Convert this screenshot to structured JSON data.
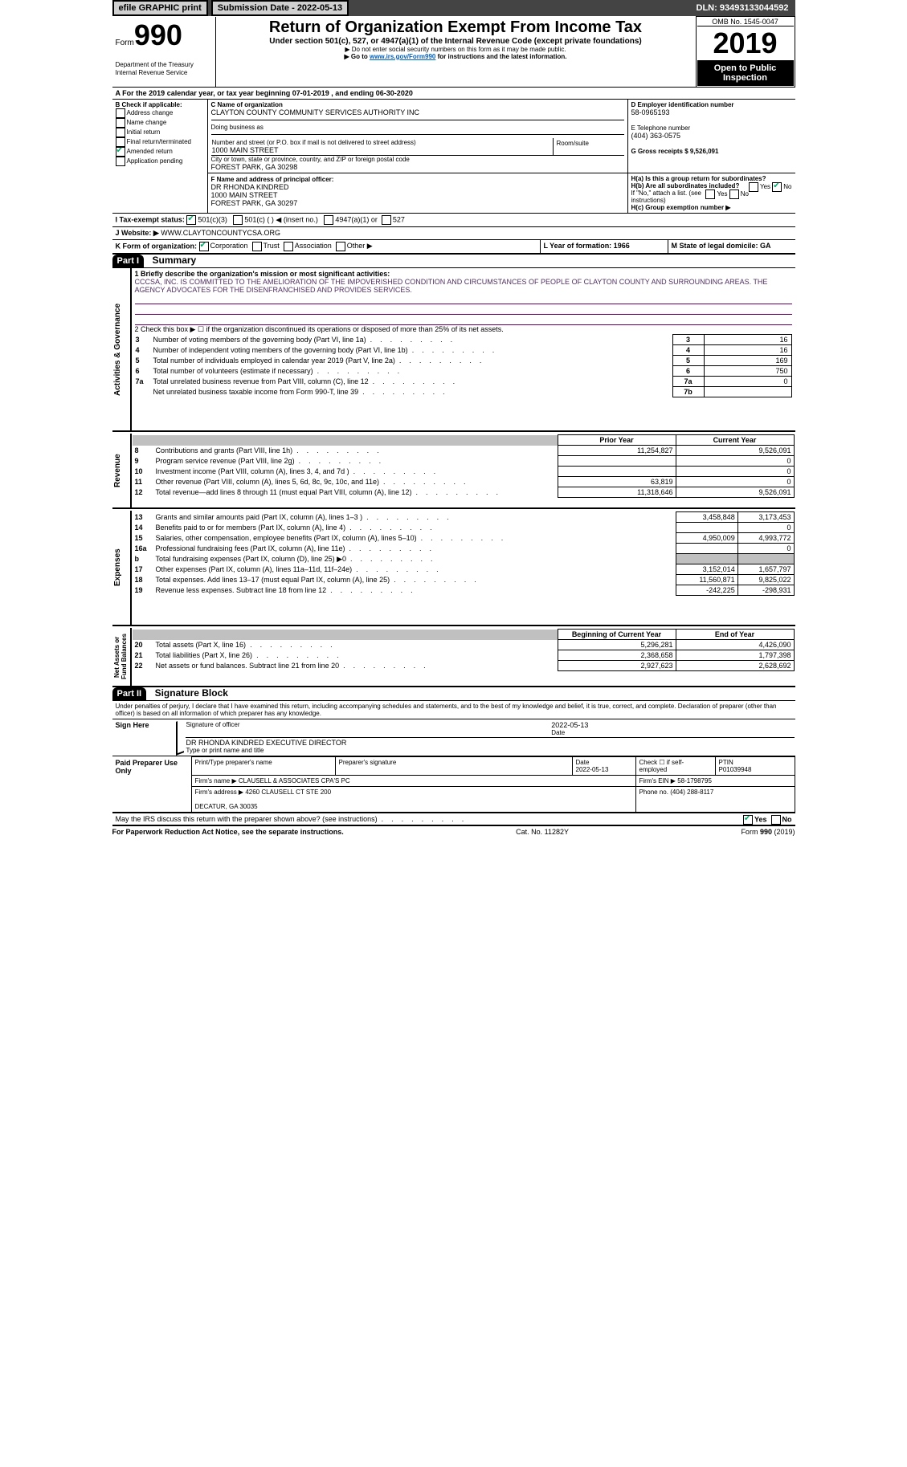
{
  "topbar": {
    "efile": "efile GRAPHIC print",
    "submission_lbl": "Submission Date - 2022-05-13",
    "dln": "DLN: 93493133044592"
  },
  "header": {
    "form_word": "Form",
    "form_num": "990",
    "dept": "Department of the Treasury\nInternal Revenue Service",
    "title": "Return of Organization Exempt From Income Tax",
    "subtitle": "Under section 501(c), 527, or 4947(a)(1) of the Internal Revenue Code (except private foundations)",
    "note1": "▶ Do not enter social security numbers on this form as it may be made public.",
    "note2_pre": "▶ Go to ",
    "note2_link": "www.irs.gov/Form990",
    "note2_post": " for instructions and the latest information.",
    "omb": "OMB No. 1545-0047",
    "year": "2019",
    "open": "Open to Public Inspection"
  },
  "period": {
    "line": "For the 2019 calendar year, or tax year beginning 07-01-2019   , and ending 06-30-2020"
  },
  "boxB": {
    "hdr": "B Check if applicable:",
    "items": [
      "Address change",
      "Name change",
      "Initial return",
      "Final return/terminated",
      "Amended return",
      "Application pending"
    ],
    "checked_idx": 4
  },
  "boxC": {
    "name_lbl": "C Name of organization",
    "name": "CLAYTON COUNTY COMMUNITY SERVICES AUTHORITY INC",
    "dba_lbl": "Doing business as",
    "addr_lbl": "Number and street (or P.O. box if mail is not delivered to street address)",
    "room_lbl": "Room/suite",
    "addr": "1000 MAIN STREET",
    "city_lbl": "City or town, state or province, country, and ZIP or foreign postal code",
    "city": "FOREST PARK, GA  30298"
  },
  "boxD": {
    "lbl": "D Employer identification number",
    "val": "58-0965193"
  },
  "boxE": {
    "lbl": "E Telephone number",
    "val": "(404) 363-0575"
  },
  "boxG": {
    "lbl": "G Gross receipts $ 9,526,091"
  },
  "boxF": {
    "lbl": "F  Name and address of principal officer:",
    "name": "DR RHONDA KINDRED",
    "addr": "1000 MAIN STREET\nFOREST PARK, GA  30297"
  },
  "boxH": {
    "a_lbl": "H(a)  Is this a group return for subordinates?",
    "a_no": "No",
    "a_yes": "Yes",
    "b_lbl": "H(b)  Are all subordinates included?",
    "b_yes": "Yes",
    "b_no": "No",
    "b_note": "If \"No,\" attach a list. (see instructions)",
    "c_lbl": "H(c)  Group exemption number ▶"
  },
  "line_i": {
    "lbl": "I   Tax-exempt status:",
    "opt1": "501(c)(3)",
    "opt2": "501(c) (  ) ◀ (insert no.)",
    "opt3": "4947(a)(1) or",
    "opt4": "527"
  },
  "line_j": {
    "lbl": "J   Website: ▶",
    "val": "WWW.CLAYTONCOUNTYCSA.ORG"
  },
  "line_k": {
    "lbl": "K Form of organization:",
    "opts": [
      "Corporation",
      "Trust",
      "Association",
      "Other ▶"
    ],
    "checked_idx": 0
  },
  "line_l": {
    "lbl": "L Year of formation: 1966"
  },
  "line_m": {
    "lbl": "M State of legal domicile: GA"
  },
  "part1": {
    "hdr": "Part I",
    "title": "Summary",
    "q1_lbl": "1  Briefly describe the organization's mission or most significant activities:",
    "q1_txt": "CCCSA, INC. IS COMMITTED TO THE AMELIORATION OF THE IMPOVERISHED CONDITION AND CIRCUMSTANCES OF PEOPLE OF CLAYTON COUNTY AND SURROUNDING AREAS. THE AGENCY ADVOCATES FOR THE DISENFRANCHISED AND PROVIDES SERVICES.",
    "q2": "2   Check this box ▶ ☐  if the organization discontinued its operations or disposed of more than 25% of its net assets.",
    "rows_gov": [
      {
        "n": "3",
        "t": "Number of voting members of the governing body (Part VI, line 1a)",
        "c": "3",
        "v": "16"
      },
      {
        "n": "4",
        "t": "Number of independent voting members of the governing body (Part VI, line 1b)",
        "c": "4",
        "v": "16"
      },
      {
        "n": "5",
        "t": "Total number of individuals employed in calendar year 2019 (Part V, line 2a)",
        "c": "5",
        "v": "169"
      },
      {
        "n": "6",
        "t": "Total number of volunteers (estimate if necessary)",
        "c": "6",
        "v": "750"
      },
      {
        "n": "7a",
        "t": "Total unrelated business revenue from Part VIII, column (C), line 12",
        "c": "7a",
        "v": "0"
      },
      {
        "n": "",
        "t": "Net unrelated business taxable income from Form 990-T, line 39",
        "c": "7b",
        "v": ""
      }
    ],
    "col_py": "Prior Year",
    "col_cy": "Current Year",
    "rows_rev": [
      {
        "n": "8",
        "t": "Contributions and grants (Part VIII, line 1h)",
        "py": "11,254,827",
        "cy": "9,526,091"
      },
      {
        "n": "9",
        "t": "Program service revenue (Part VIII, line 2g)",
        "py": "",
        "cy": "0"
      },
      {
        "n": "10",
        "t": "Investment income (Part VIII, column (A), lines 3, 4, and 7d )",
        "py": "",
        "cy": "0"
      },
      {
        "n": "11",
        "t": "Other revenue (Part VIII, column (A), lines 5, 6d, 8c, 9c, 10c, and 11e)",
        "py": "63,819",
        "cy": "0"
      },
      {
        "n": "12",
        "t": "Total revenue—add lines 8 through 11 (must equal Part VIII, column (A), line 12)",
        "py": "11,318,646",
        "cy": "9,526,091"
      }
    ],
    "rows_exp": [
      {
        "n": "13",
        "t": "Grants and similar amounts paid (Part IX, column (A), lines 1–3 )",
        "py": "3,458,848",
        "cy": "3,173,453"
      },
      {
        "n": "14",
        "t": "Benefits paid to or for members (Part IX, column (A), line 4)",
        "py": "",
        "cy": "0"
      },
      {
        "n": "15",
        "t": "Salaries, other compensation, employee benefits (Part IX, column (A), lines 5–10)",
        "py": "4,950,009",
        "cy": "4,993,772"
      },
      {
        "n": "16a",
        "t": "Professional fundraising fees (Part IX, column (A), line 11e)",
        "py": "",
        "cy": "0"
      },
      {
        "n": "b",
        "t": "Total fundraising expenses (Part IX, column (D), line 25) ▶0",
        "py": "grey",
        "cy": "grey"
      },
      {
        "n": "17",
        "t": "Other expenses (Part IX, column (A), lines 11a–11d, 11f–24e)",
        "py": "3,152,014",
        "cy": "1,657,797"
      },
      {
        "n": "18",
        "t": "Total expenses. Add lines 13–17 (must equal Part IX, column (A), line 25)",
        "py": "11,560,871",
        "cy": "9,825,022"
      },
      {
        "n": "19",
        "t": "Revenue less expenses. Subtract line 18 from line 12",
        "py": "-242,225",
        "cy": "-298,931"
      }
    ],
    "col_by": "Beginning of Current Year",
    "col_ey": "End of Year",
    "rows_na": [
      {
        "n": "20",
        "t": "Total assets (Part X, line 16)",
        "py": "5,296,281",
        "cy": "4,426,090"
      },
      {
        "n": "21",
        "t": "Total liabilities (Part X, line 26)",
        "py": "2,368,658",
        "cy": "1,797,398"
      },
      {
        "n": "22",
        "t": "Net assets or fund balances. Subtract line 21 from line 20",
        "py": "2,927,623",
        "cy": "2,628,692"
      }
    ],
    "side_gov": "Activities & Governance",
    "side_rev": "Revenue",
    "side_exp": "Expenses",
    "side_na": "Net Assets or\nFund Balances"
  },
  "part2": {
    "hdr": "Part II",
    "title": "Signature Block",
    "decl": "Under penalties of perjury, I declare that I have examined this return, including accompanying schedules and statements, and to the best of my knowledge and belief, it is true, correct, and complete. Declaration of preparer (other than officer) is based on all information of which preparer has any knowledge.",
    "sign_here": "Sign Here",
    "sig_lbl": "Signature of officer",
    "date_lbl": "Date",
    "date_val": "2022-05-13",
    "officer": "DR RHONDA KINDRED  EXECUTIVE DIRECTOR",
    "type_lbl": "Type or print name and title",
    "paid_hdr": "Paid Preparer Use Only",
    "pp_name_lbl": "Print/Type preparer's name",
    "pp_sig_lbl": "Preparer's signature",
    "pp_date_lbl": "Date",
    "pp_date": "2022-05-13",
    "pp_check": "Check ☐ if self-employed",
    "ptin_lbl": "PTIN",
    "ptin": "P01039948",
    "firm_name_lbl": "Firm's name    ▶",
    "firm_name": "CLAUSELL & ASSOCIATES CPA'S PC",
    "firm_ein_lbl": "Firm's EIN ▶",
    "firm_ein": "58-1798795",
    "firm_addr_lbl": "Firm's address ▶",
    "firm_addr": "4260 CLAUSELL CT STE 200\n\nDECATUR, GA  30035",
    "firm_phone_lbl": "Phone no.",
    "firm_phone": "(404) 288-8117",
    "may_irs": "May the IRS discuss this return with the preparer shown above? (see instructions)",
    "may_yes": "Yes",
    "may_no": "No"
  },
  "footer": {
    "l": "For Paperwork Reduction Act Notice, see the separate instructions.",
    "c": "Cat. No. 11282Y",
    "r": "Form 990 (2019)"
  },
  "colors": {
    "link": "#0060c0",
    "hdr_bg": "#000",
    "hdr_fg": "#fff",
    "mission": "#503060",
    "grey": "#c0c0c0"
  }
}
